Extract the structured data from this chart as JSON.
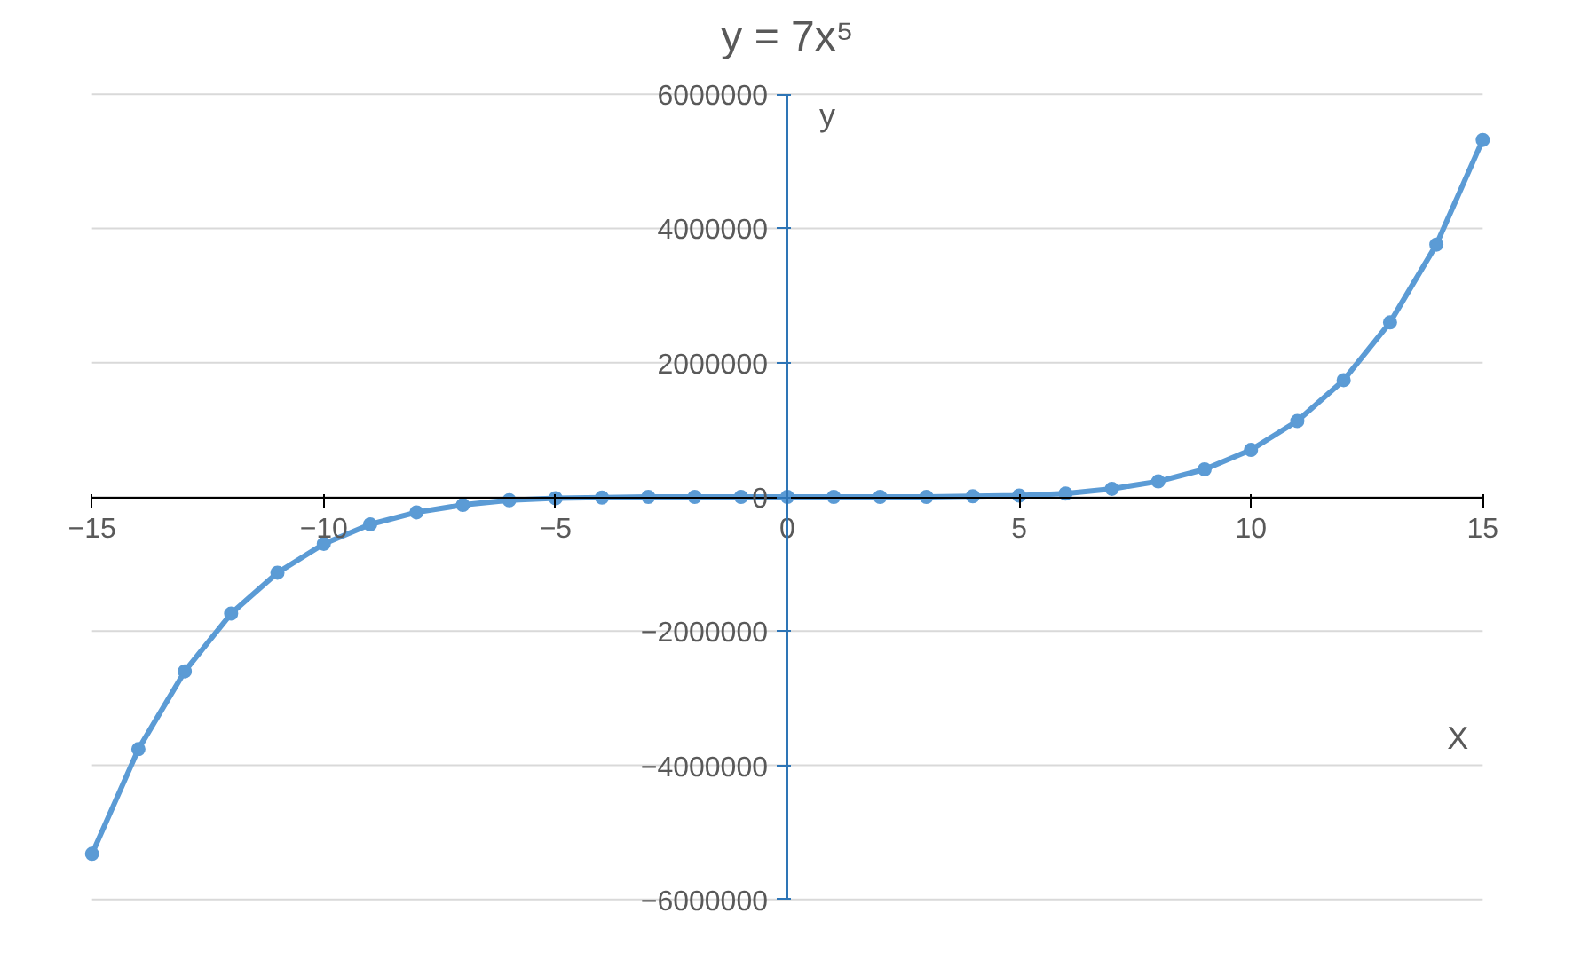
{
  "chart_data": {
    "type": "line",
    "title": "y = 7x⁵",
    "xlabel": "X",
    "ylabel": "y",
    "x": [
      -15,
      -14,
      -13,
      -12,
      -11,
      -10,
      -9,
      -8,
      -7,
      -6,
      -5,
      -4,
      -3,
      -2,
      -1,
      0,
      1,
      2,
      3,
      4,
      5,
      6,
      7,
      8,
      9,
      10,
      11,
      12,
      13,
      14,
      15
    ],
    "series": [
      {
        "color": "#5b9bd5",
        "values": [
          -5320000,
          -3760000,
          -2600000,
          -1740000,
          -1130000,
          -700000,
          -410000,
          -230000,
          -120000,
          -50000,
          -20000,
          -10000,
          0,
          0,
          0,
          0,
          0,
          0,
          0,
          10000,
          20000,
          50000,
          120000,
          230000,
          410000,
          700000,
          1130000,
          1740000,
          2600000,
          3760000,
          5320000
        ]
      }
    ],
    "xlim": [
      -15,
      15
    ],
    "ylim": [
      -6000000,
      6000000
    ],
    "xticks": [
      -15,
      -10,
      -5,
      0,
      5,
      10,
      15
    ],
    "yticks": [
      -6000000,
      -4000000,
      -2000000,
      0,
      2000000,
      4000000,
      6000000
    ],
    "grid": "y",
    "marker": "circle",
    "line_style": "solid"
  }
}
